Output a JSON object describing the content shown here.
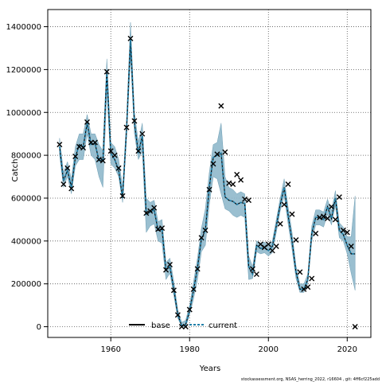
{
  "chart_data": {
    "type": "line",
    "title": "",
    "xlabel": "Years",
    "ylabel": "Catch",
    "xlim": [
      1944,
      2026
    ],
    "ylim": [
      -50000,
      1480000
    ],
    "x_ticks": [
      1960,
      1980,
      2000,
      2020
    ],
    "x_tick_labels": [
      "1960",
      "1980",
      "2000",
      "2020"
    ],
    "y_ticks": [
      0,
      200000,
      400000,
      600000,
      800000,
      1000000,
      1200000,
      1400000
    ],
    "y_tick_labels": [
      "0",
      "200000",
      "400000",
      "600000",
      "800000",
      "1000000",
      "1200000",
      "1400000"
    ],
    "grid": true,
    "legend_position": "bottom-center",
    "colors": {
      "band": "#8fb8cb",
      "band_edge": "#6f9fb5",
      "current": "#1f7fa8",
      "base": "#000000",
      "observed": "#000000"
    },
    "years": [
      1947,
      1948,
      1949,
      1950,
      1951,
      1952,
      1953,
      1954,
      1955,
      1956,
      1957,
      1958,
      1959,
      1960,
      1961,
      1962,
      1963,
      1964,
      1965,
      1966,
      1967,
      1968,
      1969,
      1970,
      1971,
      1972,
      1973,
      1974,
      1975,
      1976,
      1977,
      1978,
      1979,
      1980,
      1981,
      1982,
      1983,
      1984,
      1985,
      1986,
      1987,
      1988,
      1989,
      1990,
      1991,
      1992,
      1993,
      1994,
      1995,
      1996,
      1997,
      1998,
      1999,
      2000,
      2001,
      2002,
      2003,
      2004,
      2005,
      2006,
      2007,
      2008,
      2009,
      2010,
      2011,
      2012,
      2013,
      2014,
      2015,
      2016,
      2017,
      2018,
      2019,
      2020,
      2021,
      2022
    ],
    "series": [
      {
        "name": "base",
        "style": "solid",
        "values": [
          840000,
          680000,
          730000,
          650000,
          790000,
          850000,
          840000,
          950000,
          850000,
          855000,
          775000,
          775000,
          1190000,
          810000,
          780000,
          730000,
          600000,
          920000,
          1340000,
          950000,
          810000,
          890000,
          525000,
          535000,
          545000,
          450000,
          455000,
          265000,
          280000,
          175000,
          55000,
          5000,
          10000,
          75000,
          170000,
          275000,
          410000,
          450000,
          650000,
          790000,
          800000,
          810000,
          605000,
          590000,
          585000,
          570000,
          580000,
          575000,
          280000,
          245000,
          380000,
          365000,
          370000,
          355000,
          375000,
          470000,
          570000,
          650000,
          520000,
          400000,
          255000,
          175000,
          175000,
          220000,
          435000,
          510000,
          510000,
          500000,
          560000,
          505000,
          600000,
          450000,
          430000,
          380000,
          340000,
          340000
        ]
      },
      {
        "name": "current",
        "style": "dashed",
        "values": [
          840000,
          680000,
          730000,
          650000,
          790000,
          850000,
          840000,
          950000,
          850000,
          855000,
          775000,
          775000,
          1190000,
          810000,
          780000,
          730000,
          600000,
          920000,
          1340000,
          950000,
          810000,
          890000,
          525000,
          535000,
          545000,
          450000,
          455000,
          265000,
          280000,
          175000,
          55000,
          5000,
          10000,
          75000,
          170000,
          275000,
          410000,
          450000,
          650000,
          790000,
          800000,
          810000,
          605000,
          590000,
          585000,
          570000,
          580000,
          575000,
          280000,
          245000,
          380000,
          365000,
          370000,
          355000,
          375000,
          470000,
          570000,
          650000,
          520000,
          400000,
          255000,
          175000,
          175000,
          220000,
          435000,
          510000,
          510000,
          500000,
          560000,
          505000,
          600000,
          450000,
          430000,
          380000,
          340000,
          340000
        ]
      }
    ],
    "band": {
      "lower": [
        800000,
        650000,
        700000,
        620000,
        750000,
        780000,
        780000,
        900000,
        800000,
        780000,
        700000,
        650000,
        1100000,
        760000,
        740000,
        700000,
        580000,
        880000,
        1260000,
        900000,
        780000,
        820000,
        440000,
        470000,
        480000,
        400000,
        390000,
        220000,
        250000,
        145000,
        40000,
        0,
        0,
        55000,
        130000,
        220000,
        350000,
        380000,
        570000,
        700000,
        690000,
        620000,
        550000,
        540000,
        520000,
        510000,
        520000,
        510000,
        220000,
        225000,
        350000,
        340000,
        345000,
        330000,
        345000,
        440000,
        540000,
        610000,
        480000,
        360000,
        225000,
        160000,
        160000,
        200000,
        400000,
        475000,
        475000,
        465000,
        525000,
        475000,
        565000,
        415000,
        400000,
        340000,
        250000,
        170000
      ],
      "upper": [
        880000,
        720000,
        770000,
        690000,
        840000,
        900000,
        900000,
        990000,
        900000,
        900000,
        850000,
        820000,
        1250000,
        860000,
        840000,
        780000,
        650000,
        970000,
        1420000,
        1000000,
        860000,
        950000,
        600000,
        580000,
        590000,
        490000,
        500000,
        300000,
        320000,
        210000,
        80000,
        20000,
        30000,
        100000,
        210000,
        320000,
        460000,
        550000,
        720000,
        850000,
        860000,
        950000,
        700000,
        650000,
        640000,
        620000,
        630000,
        620000,
        330000,
        280000,
        400000,
        390000,
        395000,
        380000,
        400000,
        500000,
        600000,
        690000,
        560000,
        440000,
        285000,
        200000,
        200000,
        245000,
        470000,
        545000,
        545000,
        535000,
        595000,
        540000,
        635000,
        485000,
        465000,
        420000,
        420000,
        610000
      ]
    },
    "observed": {
      "marker": "x",
      "years": [
        1947,
        1948,
        1949,
        1950,
        1951,
        1952,
        1953,
        1954,
        1955,
        1956,
        1957,
        1958,
        1959,
        1960,
        1961,
        1962,
        1963,
        1964,
        1965,
        1966,
        1967,
        1968,
        1969,
        1970,
        1971,
        1972,
        1973,
        1974,
        1975,
        1976,
        1977,
        1978,
        1979,
        1980,
        1981,
        1982,
        1983,
        1984,
        1985,
        1986,
        1987,
        1988,
        1989,
        1990,
        1991,
        1992,
        1993,
        1994,
        1995,
        1996,
        1997,
        1998,
        1999,
        2000,
        2001,
        2002,
        2003,
        2004,
        2005,
        2006,
        2007,
        2008,
        2009,
        2010,
        2011,
        2012,
        2013,
        2014,
        2015,
        2016,
        2017,
        2018,
        2019,
        2020,
        2021,
        2022
      ],
      "values": [
        850000,
        665000,
        740000,
        645000,
        795000,
        840000,
        835000,
        955000,
        860000,
        860000,
        780000,
        775000,
        1190000,
        820000,
        800000,
        740000,
        610000,
        930000,
        1345000,
        960000,
        820000,
        900000,
        530000,
        540000,
        555000,
        455000,
        460000,
        265000,
        290000,
        170000,
        55000,
        0,
        0,
        80000,
        175000,
        270000,
        415000,
        450000,
        640000,
        760000,
        805000,
        1030000,
        815000,
        670000,
        665000,
        710000,
        685000,
        595000,
        590000,
        270000,
        245000,
        385000,
        370000,
        385000,
        355000,
        375000,
        480000,
        570000,
        665000,
        525000,
        405000,
        255000,
        175000,
        185000,
        225000,
        435000,
        510000,
        515000,
        505000,
        560000,
        500000,
        605000,
        450000,
        440000,
        375000,
        0
      ]
    }
  },
  "legend": {
    "items": [
      {
        "label": "base"
      },
      {
        "label": "current"
      }
    ]
  },
  "footnote": "stockassessment.org, NSAS_herring_2022, r16604 , git: 4ff6cf225add"
}
